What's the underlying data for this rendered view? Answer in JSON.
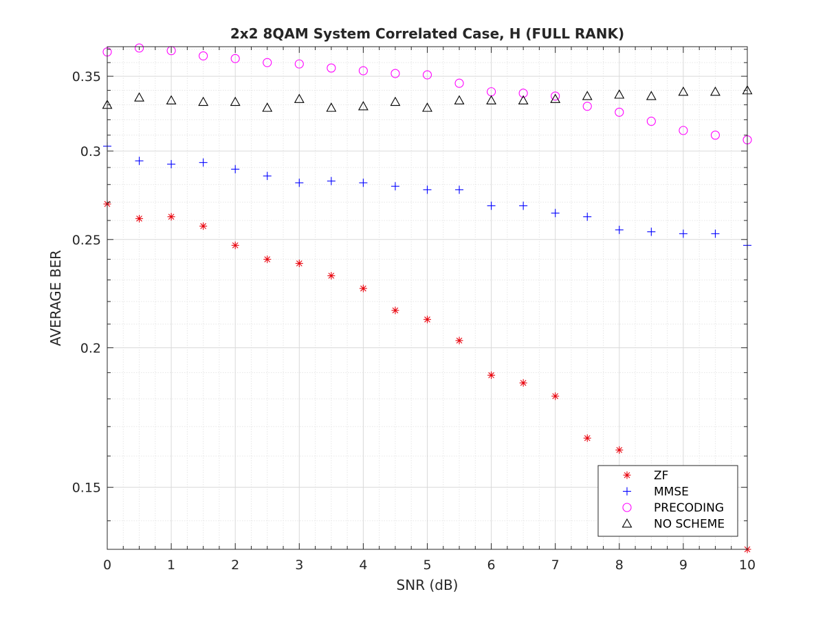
{
  "chart_data": {
    "type": "scatter",
    "title": "2x2 8QAM System Correlated Case, H (FULL RANK)",
    "xlabel": "SNR (dB)",
    "ylabel": "AVERAGE BER",
    "xlim": [
      0,
      10
    ],
    "ylim": [
      0.132,
      0.372
    ],
    "yscale": "log",
    "grid": true,
    "minor_grid": true,
    "legend_position": "bottom-right",
    "xticks": [
      0,
      1,
      2,
      3,
      4,
      5,
      6,
      7,
      8,
      9,
      10
    ],
    "xtick_labels": [
      "0",
      "1",
      "2",
      "3",
      "4",
      "5",
      "6",
      "7",
      "8",
      "9",
      "10"
    ],
    "yticks": [
      0.15,
      0.2,
      0.25,
      0.3,
      0.35
    ],
    "ytick_labels": [
      "0.15",
      "0.2",
      "0.25",
      "0.3",
      "0.35"
    ],
    "x": [
      0,
      0.5,
      1,
      1.5,
      2,
      2.5,
      3,
      3.5,
      4,
      4.5,
      5,
      5.5,
      6,
      6.5,
      7,
      7.5,
      8,
      8.5,
      9,
      9.5,
      10
    ],
    "series": [
      {
        "name": "ZF",
        "marker": "asterisk",
        "color": "#e8000b",
        "values": [
          0.269,
          0.261,
          0.262,
          0.257,
          0.247,
          0.24,
          0.238,
          0.232,
          0.226,
          0.216,
          0.212,
          0.203,
          0.189,
          0.186,
          0.181,
          0.166,
          0.162,
          0.15,
          0.144,
          0.138,
          0.132
        ]
      },
      {
        "name": "MMSE",
        "marker": "plus",
        "color": "#0000ff",
        "values": [
          0.303,
          0.294,
          0.292,
          0.293,
          0.289,
          0.285,
          0.281,
          0.282,
          0.281,
          0.279,
          0.277,
          0.277,
          0.268,
          0.268,
          0.264,
          0.262,
          0.255,
          0.254,
          0.253,
          0.253,
          0.247
        ]
      },
      {
        "name": "PRECODING",
        "marker": "circle",
        "color": "#ff00ff",
        "values": [
          0.368,
          0.371,
          0.369,
          0.365,
          0.363,
          0.36,
          0.359,
          0.356,
          0.354,
          0.352,
          0.351,
          0.345,
          0.339,
          0.338,
          0.336,
          0.329,
          0.325,
          0.319,
          0.313,
          0.31,
          0.307
        ]
      },
      {
        "name": "NO SCHEME",
        "marker": "triangle",
        "color": "#000000",
        "values": [
          0.33,
          0.335,
          0.333,
          0.332,
          0.332,
          0.328,
          0.334,
          0.328,
          0.329,
          0.332,
          0.328,
          0.333,
          0.333,
          0.333,
          0.334,
          0.336,
          0.337,
          0.336,
          0.339,
          0.339,
          0.34
        ]
      }
    ]
  }
}
